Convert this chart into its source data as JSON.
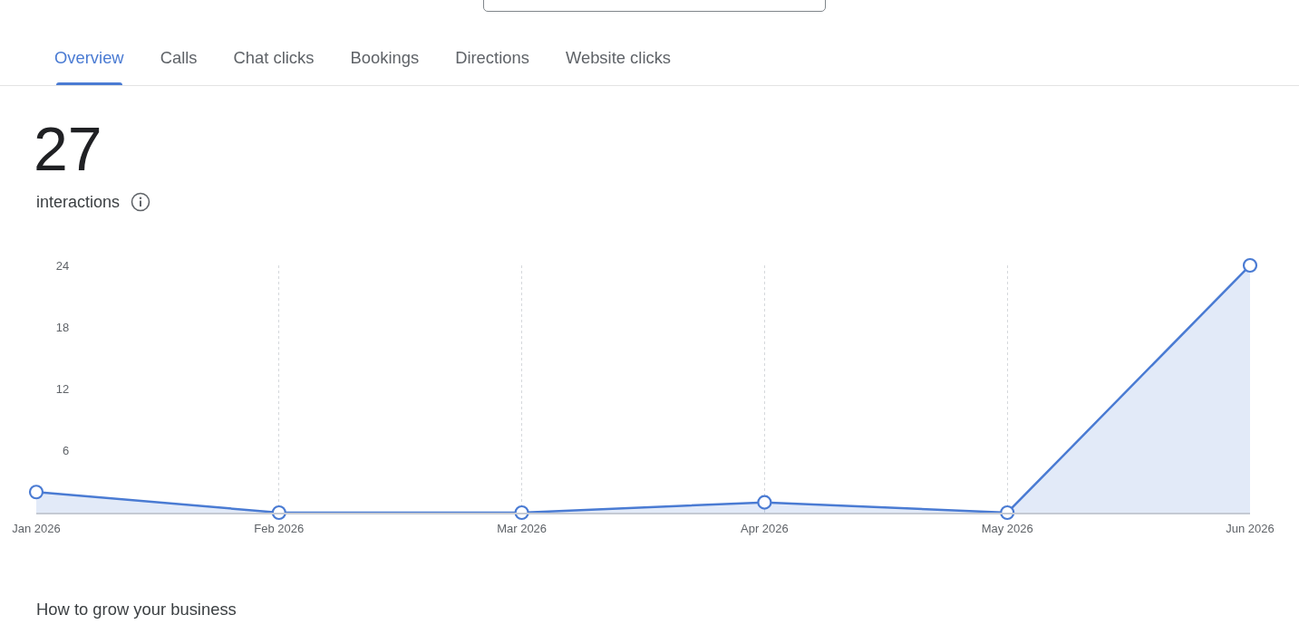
{
  "chart_data": {
    "type": "area",
    "title": "27",
    "subtitle": "interactions",
    "annotations": [
      "Overview",
      "Calls",
      "Chat clicks",
      "Bookings",
      "Directions",
      "Website clicks",
      "How to grow your business"
    ],
    "categories": [
      "Jan 2026",
      "Feb 2026",
      "Mar 2026",
      "Apr 2026",
      "May 2026",
      "Jun 2026"
    ],
    "values": [
      2,
      0,
      0,
      1,
      0,
      24
    ],
    "color": "#4a7bd3",
    "ylim": [
      0,
      24
    ],
    "yticks": [
      6,
      12,
      18,
      24
    ],
    "grid": "x",
    "marker": "circle",
    "line_style": "solid"
  }
}
